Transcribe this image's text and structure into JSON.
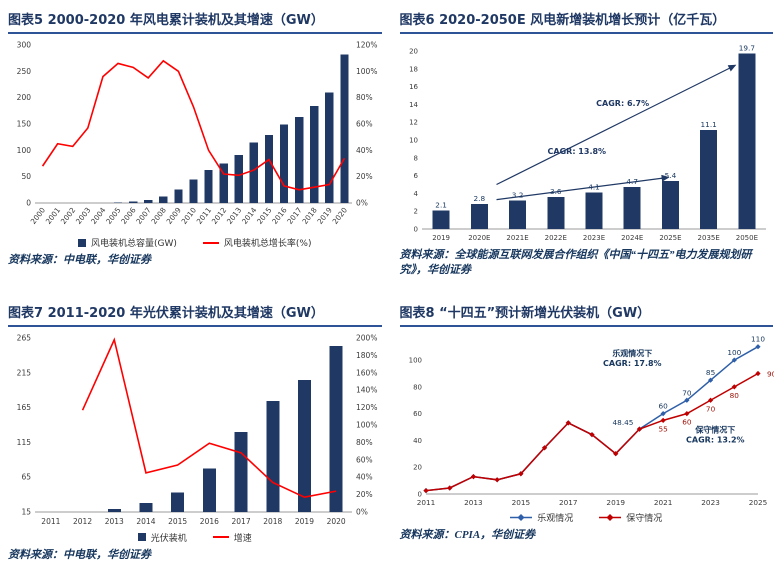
{
  "page": {
    "background": "#FFFFFF"
  },
  "colors": {
    "navy": "#1F3864",
    "title_text": "#1F3864",
    "underline": "#2E5497",
    "bright_red": "#FF0000",
    "dark_red": "#C00000",
    "blue_line": "#2E5FA8",
    "source_text": "#17375E"
  },
  "panels": [
    {
      "title": "图表5  2000-2020 年风电累计装机及其增速（GW）",
      "source": "资料来源：中电联，华创证券"
    },
    {
      "title": "图表6  2020-2050E 风电新增装机增长预计（亿千瓦）",
      "source": "资料来源：全球能源互联网发展合作组织《中国“十四五”电力发展规划研究》，华创证券"
    },
    {
      "title": "图表7  2011-2020 年光伏累计装机及其增速（GW）",
      "source": "资料来源：中电联，华创证券"
    },
    {
      "title": "图表8  “十四五”预计新增光伏装机（GW）",
      "source": "资料来源：CPIA，华创证券"
    }
  ],
  "chart_data": [
    {
      "type": "bar+line",
      "title": "2000-2020 年风电累计装机及其增速（GW）",
      "categories": [
        "2000",
        "2001",
        "2002",
        "2003",
        "2004",
        "2005",
        "2006",
        "2007",
        "2008",
        "2009",
        "2010",
        "2011",
        "2012",
        "2013",
        "2014",
        "2015",
        "2016",
        "2017",
        "2018",
        "2019",
        "2020"
      ],
      "bar_series": {
        "name": "风电装机总容量(GW)",
        "color": "#1F3864",
        "values": [
          0.3,
          0.4,
          0.5,
          0.6,
          0.8,
          1.3,
          2.6,
          5.9,
          12.1,
          25.8,
          44.7,
          62.4,
          75.3,
          91.4,
          114.6,
          129.3,
          148.6,
          163.7,
          184.3,
          210.1,
          281.5
        ]
      },
      "line_series": {
        "name": "风电装机总增长率(%)",
        "color": "#FF0000",
        "values": [
          28,
          45,
          43,
          57,
          96,
          106,
          103,
          95,
          108,
          100,
          73,
          40,
          22,
          21,
          25,
          33,
          13,
          10,
          12,
          14,
          34
        ]
      },
      "left_axis": {
        "min": 0,
        "max": 300,
        "ticks": [
          0,
          50,
          100,
          150,
          200,
          250,
          300
        ]
      },
      "right_axis": {
        "min": 0,
        "max": 120,
        "ticks": [
          0,
          20,
          40,
          60,
          80,
          100,
          120
        ],
        "suffix": "%"
      },
      "x_rotate": true,
      "legend": [
        {
          "marker": "rect",
          "color": "#1F3864",
          "label": "风电装机总容量(GW)"
        },
        {
          "marker": "line",
          "color": "#FF0000",
          "label": "风电装机总增长率(%)"
        }
      ]
    },
    {
      "type": "bar-labeled",
      "title": "2020-2050E 风电新增装机增长预计（亿千瓦）",
      "categories": [
        "2019",
        "2020E",
        "2021E",
        "2022E",
        "2023E",
        "2024E",
        "2025E",
        "2035E",
        "2050E"
      ],
      "values": [
        2.1,
        2.8,
        3.2,
        3.6,
        4.1,
        4.7,
        5.4,
        11.1,
        19.7
      ],
      "bar_color": "#1F3864",
      "y_axis": {
        "min": 0,
        "max": 20,
        "ticks": [
          0,
          2,
          4,
          6,
          8,
          10,
          12,
          14,
          16,
          18,
          20
        ]
      },
      "annotations": [
        {
          "label": "CAGR: 6.7%",
          "from": [
            1.45,
            5.0
          ],
          "to": [
            7.7,
            18.4
          ],
          "label_at": [
            4.75,
            13.8
          ]
        },
        {
          "label": "CAGR: 13.8%",
          "from": [
            1.45,
            3.3
          ],
          "to": [
            5.95,
            5.8
          ],
          "label_at": [
            3.55,
            8.4
          ]
        }
      ]
    },
    {
      "type": "bar+line",
      "title": "2011-2020 年光伏累计装机及其增速（GW）",
      "categories": [
        "2011",
        "2012",
        "2013",
        "2014",
        "2015",
        "2016",
        "2017",
        "2018",
        "2019",
        "2020"
      ],
      "bar_series": {
        "name": "光伏装机",
        "color": "#1F3864",
        "values": [
          3.0,
          6.5,
          19.4,
          28.1,
          43.2,
          77.4,
          130.2,
          174.5,
          204.3,
          253.4
        ]
      },
      "line_series": {
        "name": "增速",
        "color": "#FF0000",
        "values": [
          null,
          117,
          198,
          45,
          54,
          79,
          68,
          34,
          17,
          24
        ]
      },
      "left_axis": {
        "min": 15,
        "max": 265,
        "ticks": [
          15,
          65,
          115,
          165,
          215,
          265
        ]
      },
      "right_axis": {
        "min": 0,
        "max": 200,
        "ticks": [
          0,
          20,
          40,
          60,
          80,
          100,
          120,
          140,
          160,
          180,
          200
        ],
        "suffix": "%"
      },
      "x_rotate": false,
      "legend": [
        {
          "marker": "rect",
          "color": "#1F3864",
          "label": "光伏装机"
        },
        {
          "marker": "line",
          "color": "#FF0000",
          "label": "增速"
        }
      ]
    },
    {
      "type": "multi-line",
      "title": "“十四五”预计新增光伏装机（GW）",
      "x_labels": [
        "2011",
        "2012",
        "2013",
        "2014",
        "2015",
        "2016",
        "2017",
        "2018",
        "2019",
        "2020",
        "2021",
        "2022",
        "2023",
        "2024",
        "2025"
      ],
      "x_tick_step": 2,
      "y_axis": {
        "min": 0,
        "max": 115,
        "ticks": [
          0,
          20,
          40,
          60,
          80,
          100
        ]
      },
      "series": [
        {
          "name": "乐观情况",
          "color": "#2E5FA8",
          "values": [
            2.5,
            4.5,
            13.0,
            10.6,
            15.1,
            34.5,
            53.1,
            44.3,
            30.1,
            48.45,
            60,
            70,
            85,
            100,
            110
          ],
          "point_labels": [
            {
              "i": 9,
              "t": "48.45",
              "dx": -6,
              "dy": -4,
              "a": "end"
            },
            {
              "i": 10,
              "t": "60"
            },
            {
              "i": 11,
              "t": "70"
            },
            {
              "i": 12,
              "t": "85"
            },
            {
              "i": 13,
              "t": "100"
            },
            {
              "i": 14,
              "t": "110"
            }
          ]
        },
        {
          "name": "保守情况",
          "color": "#C00000",
          "values": [
            2.5,
            4.5,
            13.0,
            10.6,
            15.1,
            34.5,
            53.1,
            44.3,
            30.1,
            48.45,
            55,
            60,
            70,
            80,
            90
          ],
          "point_labels": [
            {
              "i": 10,
              "t": "55"
            },
            {
              "i": 11,
              "t": "60"
            },
            {
              "i": 12,
              "t": "70"
            },
            {
              "i": 13,
              "t": "80"
            },
            {
              "i": 14,
              "t": "90",
              "dx": 9,
              "dy": 3,
              "a": "start"
            }
          ]
        }
      ],
      "annotations": [
        {
          "lines": [
            "乐观情况下",
            "CAGR: 17.8%"
          ],
          "at": [
            8.7,
            103
          ]
        },
        {
          "lines": [
            "保守情况下",
            "CAGR: 13.2%"
          ],
          "at": [
            12.2,
            46
          ]
        }
      ],
      "legend": [
        {
          "marker": "diamond-line",
          "color": "#2E5FA8",
          "label": "乐观情况"
        },
        {
          "marker": "diamond-line",
          "color": "#C00000",
          "label": "保守情况"
        }
      ]
    }
  ]
}
